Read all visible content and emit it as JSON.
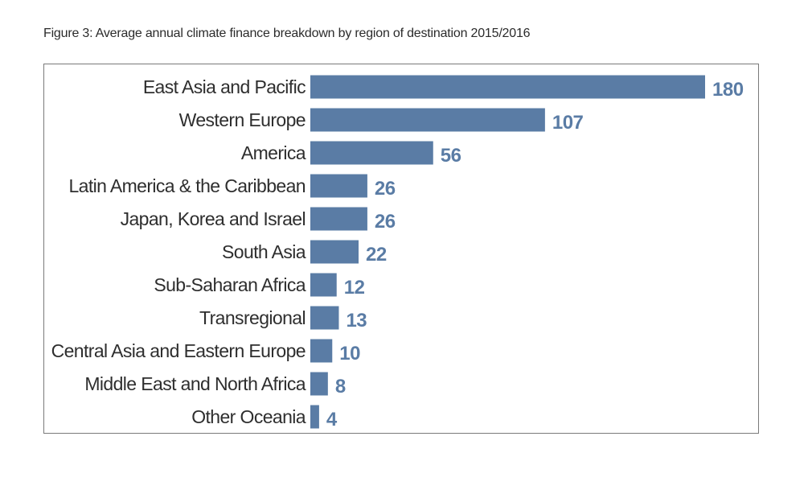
{
  "figure": {
    "title": "Figure 3: Average annual climate finance breakdown by region of destination 2015/2016"
  },
  "colors": {
    "bar": "#5a7ca5",
    "value_label": "#5a7ca5",
    "border": "#7a7a7a"
  },
  "chart_data": {
    "type": "bar",
    "orientation": "horizontal",
    "categories": [
      "East Asia and Pacific",
      "Western Europe",
      "America",
      "Latin America & the Caribbean",
      "Japan, Korea and Israel",
      "South Asia",
      "Sub-Saharan Africa",
      "Transregional",
      "Central Asia and Eastern Europe",
      "Middle East and North Africa",
      "Other Oceania"
    ],
    "values": [
      180,
      107,
      56,
      26,
      26,
      22,
      12,
      13,
      10,
      8,
      4
    ],
    "value_labels": [
      "180",
      "107",
      "56",
      "26",
      "26",
      "22",
      "12",
      "13",
      "10",
      "8",
      "4"
    ],
    "title": "",
    "xlabel": "",
    "ylabel": "",
    "xlim": [
      0,
      180
    ],
    "grid": false,
    "legend": "none"
  }
}
